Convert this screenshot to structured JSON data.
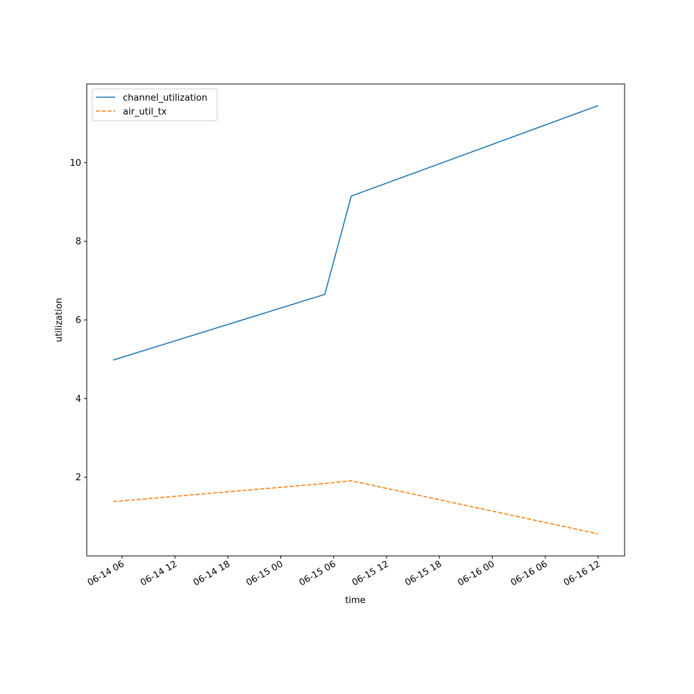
{
  "chart_data": {
    "type": "line",
    "xlabel": "time",
    "ylabel": "utilization",
    "x": [
      "06-14 05",
      "06-15 05",
      "06-15 08",
      "06-16 12"
    ],
    "series": [
      {
        "name": "channel_utilization",
        "color": "#1f77b4",
        "linestyle": "solid",
        "values": [
          4.98,
          6.65,
          9.15,
          11.45
        ]
      },
      {
        "name": "air_util_tx",
        "color": "#ff7f0e",
        "linestyle": "dashed",
        "values": [
          1.38,
          1.84,
          1.91,
          0.56
        ]
      }
    ],
    "xlim": [
      "06-14 02",
      "06-16 15"
    ],
    "xticks": [
      "06-14 06",
      "06-14 12",
      "06-14 18",
      "06-15 00",
      "06-15 06",
      "06-15 12",
      "06-15 18",
      "06-16 00",
      "06-16 06",
      "06-16 12"
    ],
    "ylim": [
      0,
      12
    ],
    "yticks": [
      2,
      4,
      6,
      8,
      10
    ],
    "legend": "upper left",
    "grid": false
  }
}
